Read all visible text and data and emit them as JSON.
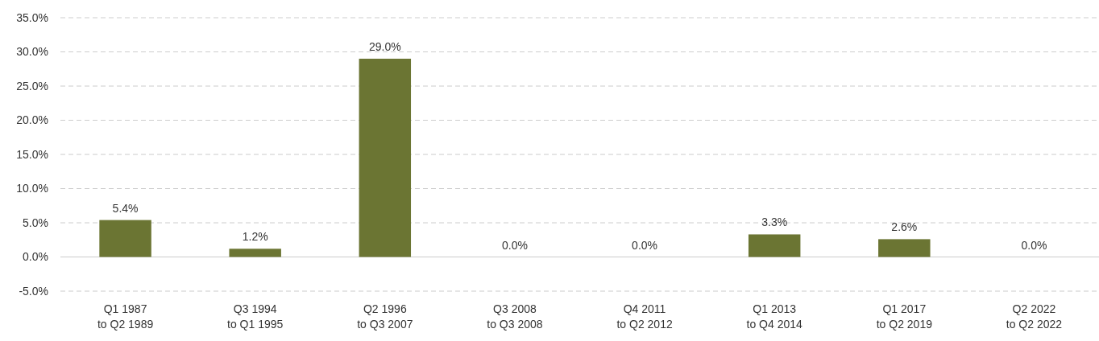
{
  "chart_data": {
    "type": "bar",
    "categories": [
      "Q1 1987 to Q2 1989",
      "Q3 1994 to Q1 1995",
      "Q2 1996 to Q3 2007",
      "Q3 2008 to Q3 2008",
      "Q4 2011 to Q2 2012",
      "Q1 2013 to Q4 2014",
      "Q1 2017 to Q2 2019",
      "Q2 2022 to Q2 2022"
    ],
    "values": [
      5.4,
      1.2,
      29.0,
      0.0,
      0.0,
      3.3,
      2.6,
      0.0
    ],
    "color": "#6b7533",
    "ylim": [
      -5,
      35
    ],
    "yticks": [
      {
        "value": -5,
        "label": "-5.0%"
      },
      {
        "value": 0,
        "label": "0.0%"
      },
      {
        "value": 5,
        "label": "5.0%"
      },
      {
        "value": 10,
        "label": "10.0%"
      },
      {
        "value": 15,
        "label": "15.0%"
      },
      {
        "value": 20,
        "label": "20.0%"
      },
      {
        "value": 25,
        "label": "25.0%"
      },
      {
        "value": 30,
        "label": "30.0%"
      },
      {
        "value": 35,
        "label": "35.0%"
      }
    ],
    "grid": "y",
    "value_labels": [
      "5.4%",
      "1.2%",
      "29.0%",
      "0.0%",
      "0.0%",
      "3.3%",
      "2.6%",
      "0.0%"
    ]
  }
}
